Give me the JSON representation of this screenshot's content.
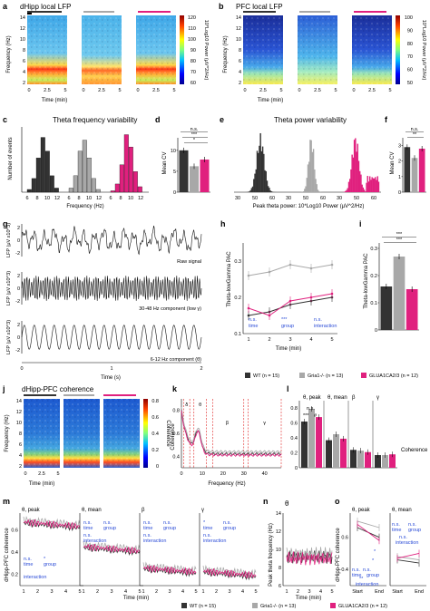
{
  "colors": {
    "wt": "#333333",
    "gria": "#a8a8a8",
    "glua": "#e0207e",
    "sig": "#2a4bd7"
  },
  "panels": {
    "a": {
      "label": "a",
      "title": "dHipp local LFP",
      "ylabel": "Frequency (Hz)",
      "xlabel": "Time (min)",
      "yticks": [
        "14",
        "12",
        "10",
        "8",
        "6",
        "4",
        "2"
      ],
      "xticks": [
        "0",
        "2.5",
        "5"
      ],
      "cbar_ticks": [
        "120",
        "110",
        "100",
        "90",
        "80",
        "70",
        "60"
      ],
      "cbar_label": "10*Log10 Power (μV^2/Hz)"
    },
    "b": {
      "label": "b",
      "title": "PFC local LFP",
      "ylabel": "Frequency (Hz)",
      "xlabel": "Time (min)",
      "yticks": [
        "14",
        "12",
        "10",
        "8",
        "6",
        "4",
        "2"
      ],
      "xticks": [
        "0",
        "2.5",
        "5"
      ],
      "cbar_ticks": [
        "100",
        "90",
        "80",
        "70",
        "60",
        "50"
      ],
      "cbar_label": "10*Log10 Power (μV^2/Hz)"
    },
    "c": {
      "label": "c",
      "title": "Theta frequency variability",
      "ylabel": "Number of events",
      "xlabel": "Frequency (Hz)",
      "xticks": [
        "6",
        "8",
        "10",
        "12"
      ]
    },
    "d": {
      "label": "d",
      "ylabel": "Mean CV",
      "yticks": [
        "0",
        "5",
        "10"
      ],
      "stats": [
        "n.s.",
        "***",
        "*"
      ]
    },
    "e": {
      "label": "e",
      "title": "Theta power variability",
      "xlabel": "Peak theta power: 10*Log10 Power (μV^2/Hz)",
      "xticks": [
        "30",
        "50",
        "60",
        "30",
        "50",
        "60",
        "30",
        "50",
        "60"
      ]
    },
    "f": {
      "label": "f",
      "ylabel": "Mean CV",
      "yticks": [
        "0",
        "1",
        "2",
        "3"
      ],
      "stats": [
        "n.s.",
        "**"
      ]
    },
    "g": {
      "label": "g",
      "ylabel": "LFP (μV x10^3)",
      "traces": [
        "Raw signal",
        "30-48 Hz component (low γ)",
        "6-12 Hz component (θ)"
      ],
      "yticks_raw": [
        "2",
        "0",
        "-2"
      ],
      "yticks_gamma": [
        "2",
        "0",
        "-2"
      ],
      "yticks_theta": [
        "2",
        "0",
        "-2"
      ],
      "xlabel": "Time (s)",
      "xticks": [
        "0",
        "1",
        "2"
      ]
    },
    "h": {
      "label": "h",
      "ylabel": "Theta-lowGamma PAC",
      "xlabel": "Time (min)",
      "yticks": [
        "0.1",
        "0.2",
        "0.3"
      ],
      "xticks": [
        "1",
        "2",
        "3",
        "4",
        "5"
      ],
      "stats": [
        [
          "n.s.",
          "time"
        ],
        [
          "***",
          "group"
        ],
        [
          "n.s.",
          "interaction"
        ]
      ]
    },
    "i": {
      "label": "i",
      "ylabel": "Theta-lowGamma PAC",
      "yticks": [
        "0",
        "0.1",
        "0.2",
        "0.3"
      ],
      "stats": [
        "***",
        "***"
      ]
    },
    "j": {
      "label": "j",
      "title": "dHipp-PFC coherence",
      "ylabel": "Frequency (Hz)",
      "xlabel": "Time (min)",
      "yticks": [
        "14",
        "12",
        "10",
        "8",
        "6",
        "4",
        "2"
      ],
      "xticks": [
        "0",
        "2.5",
        "5"
      ],
      "cbar_ticks": [
        "0.8",
        "0.6",
        "0.4",
        "0.2",
        "0"
      ],
      "cbar_label": "Coherence"
    },
    "k": {
      "label": "k",
      "ylabel": "Coherence",
      "xlabel": "Frequency (Hz)",
      "yticks": [
        "0.4",
        "0.6",
        "0.8"
      ],
      "xticks": [
        "0",
        "10",
        "20",
        "30",
        "40"
      ],
      "bands": [
        "δ",
        "θ",
        "β",
        "γ"
      ]
    },
    "l": {
      "label": "l",
      "ylabel": "Coherence",
      "yticks": [
        "0",
        "0.2",
        "0.4",
        "0.6",
        "0.8"
      ],
      "groups": [
        "θ, peak",
        "θ, mean",
        "β",
        "γ"
      ],
      "stats": [
        "***",
        "#",
        "n.s."
      ]
    },
    "m": {
      "label": "m",
      "ylabel": "dHipp-PFC coherence",
      "xlabel": "Time (min)",
      "xticks": [
        "1",
        "2",
        "3",
        "4",
        "5"
      ],
      "yticks": [
        "0.2",
        "0.4",
        "0.6"
      ],
      "subtitles": [
        "θ, peak",
        "θ, mean",
        "β",
        "γ"
      ],
      "stats": [
        [
          [
            "n.s.",
            "time"
          ],
          [
            "*",
            "group"
          ],
          [
            "",
            "interaction"
          ]
        ],
        [
          [
            "n.s.",
            "time"
          ],
          [
            "n.s.",
            "group"
          ],
          [
            "n.s.",
            "interaction"
          ]
        ],
        [
          [
            "n.s.",
            "time"
          ],
          [
            "n.s.",
            "group"
          ],
          [
            "n.s.",
            "interaction"
          ]
        ],
        [
          [
            "*",
            "time"
          ],
          [
            "n.s.",
            "group"
          ],
          [
            "n.s.",
            "interaction"
          ]
        ]
      ]
    },
    "n": {
      "label": "n",
      "title": "θ",
      "ylabel": "Peak theta frequency (Hz)",
      "xlabel": "Time (min)",
      "xticks": [
        "1",
        "2",
        "3",
        "4",
        "5"
      ],
      "yticks": [
        "6",
        "8",
        "10",
        "12",
        "14"
      ]
    },
    "o": {
      "label": "o",
      "ylabel": "dHipp-PFC coherence",
      "subtitles": [
        "θ, peak",
        "θ, mean"
      ],
      "xticks": [
        "Start",
        "End",
        "Start",
        "End"
      ],
      "yticks": [
        "0.4",
        "0.6"
      ],
      "stats": [
        "n.s.",
        "n.s.",
        "*",
        "*",
        "**",
        "n.s.",
        "n.s.",
        "n.s."
      ],
      "stat_labels": [
        "time",
        "group",
        "interaction"
      ]
    }
  },
  "legend_top": [
    {
      "label": "WT (n = 15)"
    },
    {
      "label": "Gria1-/- (n = 13)"
    },
    {
      "label": "GLUA1CA2/3 (n = 12)"
    }
  ],
  "legend_bottom": [
    {
      "label": "WT (n = 15)"
    },
    {
      "label": "Gria1-/- (n = 13)"
    },
    {
      "label": "GLUA1CA2/3 (n = 12)"
    }
  ],
  "chart_data": [
    {
      "panel": "d",
      "type": "bar",
      "categories": [
        "WT",
        "Gria1-/-",
        "GLUA1CA2/3"
      ],
      "values": [
        10.0,
        6.2,
        7.8
      ],
      "ylim": [
        0,
        13
      ]
    },
    {
      "panel": "f",
      "type": "bar",
      "categories": [
        "WT",
        "Gria1-/-",
        "GLUA1CA2/3"
      ],
      "values": [
        2.9,
        2.2,
        2.8
      ],
      "ylim": [
        0,
        3.5
      ]
    },
    {
      "panel": "i",
      "type": "bar",
      "categories": [
        "WT",
        "Gria1-/-",
        "GLUA1CA2/3"
      ],
      "values": [
        0.16,
        0.27,
        0.15
      ],
      "ylim": [
        0,
        0.32
      ]
    },
    {
      "panel": "h",
      "type": "line",
      "x": [
        1,
        2,
        3,
        4,
        5
      ],
      "ylim": [
        0.1,
        0.35
      ],
      "series": [
        {
          "name": "WT (n = 15)",
          "values": [
            0.15,
            0.16,
            0.18,
            0.19,
            0.2
          ]
        },
        {
          "name": "Gria1-/- (n = 13)",
          "values": [
            0.26,
            0.27,
            0.29,
            0.28,
            0.29
          ]
        },
        {
          "name": "GLUA1CA2/3 (n = 12)",
          "values": [
            0.17,
            0.15,
            0.19,
            0.2,
            0.21
          ]
        }
      ]
    },
    {
      "panel": "l",
      "type": "bar",
      "categories": [
        "θ, peak",
        "θ, mean",
        "β",
        "γ"
      ],
      "ylim": [
        0,
        0.9
      ],
      "series": [
        {
          "name": "WT (n = 15)",
          "values": [
            0.62,
            0.37,
            0.24,
            0.17
          ]
        },
        {
          "name": "Gria1-/- (n = 13)",
          "values": [
            0.79,
            0.45,
            0.23,
            0.17
          ]
        },
        {
          "name": "GLUA1CA2/3 (n = 12)",
          "values": [
            0.68,
            0.39,
            0.21,
            0.18
          ]
        }
      ]
    },
    {
      "panel": "c",
      "type": "bar",
      "categories": [
        "6",
        "7",
        "8",
        "9",
        "10",
        "11",
        "12"
      ],
      "series": [
        {
          "name": "WT (n = 15)",
          "values": [
            2,
            10,
            25,
            40,
            30,
            12,
            3
          ]
        },
        {
          "name": "Gria1-/- (n = 13)",
          "values": [
            3,
            12,
            30,
            38,
            25,
            10,
            2
          ]
        },
        {
          "name": "GLUA1CA2/3 (n = 12)",
          "values": [
            1,
            6,
            20,
            42,
            33,
            15,
            4
          ]
        }
      ]
    }
  ]
}
